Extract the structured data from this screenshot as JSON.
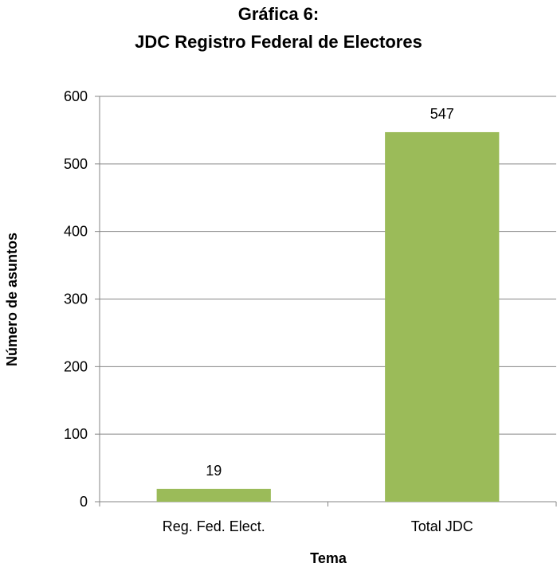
{
  "chart_data": {
    "type": "bar",
    "title": "Gráfica 6:",
    "subtitle": "JDC Registro Federal de Electores",
    "xlabel": "Tema",
    "ylabel": "Número de asuntos",
    "categories": [
      "Reg. Fed. Elect.",
      "Total JDC"
    ],
    "values": [
      19,
      547
    ],
    "data_labels": [
      "19",
      "547"
    ],
    "ylim": [
      0,
      600
    ],
    "yticks": [
      0,
      100,
      200,
      300,
      400,
      500,
      600
    ],
    "grid": true,
    "legend": "none",
    "colors": {
      "bar": "#9BBB59",
      "grid": "#868686",
      "axis": "#868686",
      "text": "#000000"
    }
  }
}
